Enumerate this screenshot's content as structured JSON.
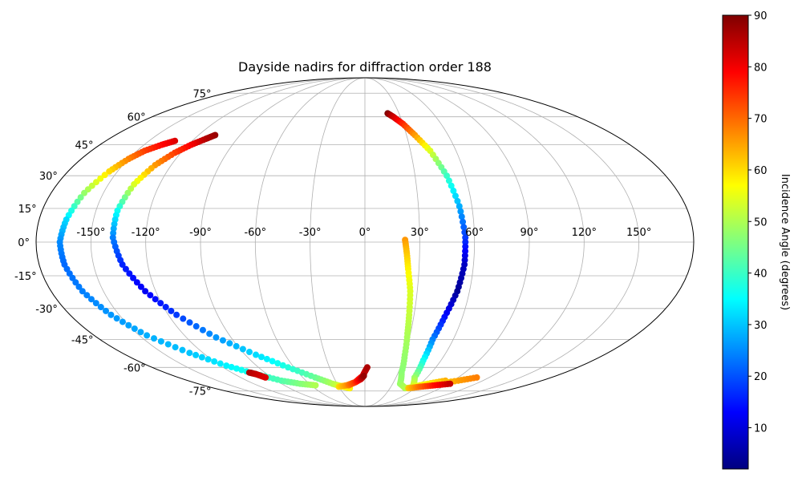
{
  "chart_data": {
    "type": "scatter",
    "projection": "mollweide",
    "title": "Dayside nadirs for diffraction order 188",
    "grid": true,
    "xticks": [
      -150,
      -120,
      -90,
      -60,
      -30,
      0,
      30,
      60,
      90,
      120,
      150
    ],
    "xtick_labels": [
      "-150°",
      "-120°",
      "-90°",
      "-60°",
      "-30°",
      "0°",
      "30°",
      "60°",
      "90°",
      "120°",
      "150°"
    ],
    "yticks": [
      -75,
      -60,
      -45,
      -30,
      -15,
      0,
      15,
      30,
      45,
      60,
      75
    ],
    "ytick_labels": [
      "-75°",
      "-60°",
      "-45°",
      "-30°",
      "-15°",
      "0°",
      "15°",
      "30°",
      "45°",
      "60°",
      "75°"
    ],
    "colorbar": {
      "label": "Incidence Angle (degrees)",
      "colormap": "jet",
      "range": [
        2,
        90
      ],
      "ticks": [
        10,
        20,
        30,
        40,
        50,
        60,
        70,
        80,
        90
      ]
    },
    "series": [
      {
        "longitude": [
          -132,
          -138,
          -145,
          -150,
          -155,
          -161,
          -165,
          -167,
          -166,
          -162,
          -155,
          -145,
          -130,
          -115,
          -100,
          -85,
          -70,
          -55
        ],
        "latitude": [
          47,
          45,
          42,
          38,
          32,
          22,
          10,
          0,
          -10,
          -22,
          -33,
          -43,
          -52,
          -59,
          -64,
          -68,
          -70,
          -71
        ],
        "incidence": [
          82,
          79,
          74,
          68,
          60,
          48,
          32,
          25,
          22,
          24,
          26,
          28,
          30,
          34,
          38,
          42,
          46,
          50
        ]
      },
      {
        "longitude": [
          -108,
          -112,
          -118,
          -124,
          -130,
          -135,
          -138,
          -138,
          -134,
          -126,
          -115,
          -100,
          -82,
          -65,
          -48,
          -35,
          -25,
          -18
        ],
        "latitude": [
          50,
          48,
          45,
          41,
          35,
          26,
          14,
          2,
          -10,
          -22,
          -33,
          -44,
          -53,
          -60,
          -66,
          -70,
          -72,
          -73
        ],
        "incidence": [
          88,
          86,
          80,
          74,
          66,
          54,
          36,
          24,
          16,
          12,
          18,
          26,
          32,
          38,
          44,
          50,
          55,
          58
        ]
      },
      {
        "longitude": [
          -30,
          -20,
          -10,
          -2,
          2
        ],
        "latitude": [
          -72,
          -71,
          -69,
          -65,
          -60
        ],
        "incidence": [
          60,
          66,
          74,
          82,
          86
        ]
      },
      {
        "longitude": [
          -18,
          -10,
          -4,
          -1
        ],
        "latitude": [
          -71,
          -69,
          -67,
          -65
        ],
        "incidence": [
          68,
          74,
          82,
          88
        ]
      },
      {
        "longitude": [
          -104,
          -100,
          -96
        ],
        "latitude": [
          -63,
          -64,
          -66
        ],
        "incidence": [
          86,
          84,
          82
        ]
      },
      {
        "longitude": [
          20,
          24,
          30,
          36,
          43,
          49,
          53,
          55,
          55,
          53,
          49,
          46,
          46,
          48,
          55,
          68,
          82
        ],
        "latitude": [
          62,
          60,
          56,
          50,
          42,
          30,
          16,
          2,
          -10,
          -22,
          -34,
          -45,
          -56,
          -66,
          -72,
          -70,
          -68
        ],
        "incidence": [
          90,
          84,
          76,
          66,
          54,
          40,
          28,
          18,
          8,
          4,
          14,
          24,
          36,
          48,
          54,
          58,
          64
        ]
      },
      {
        "longitude": [
          22,
          23,
          24,
          26,
          27,
          28,
          30,
          33,
          38,
          48,
          62,
          78,
          95,
          108
        ],
        "latitude": [
          1,
          -5,
          -12,
          -22,
          -33,
          -42,
          -53,
          -63,
          -70,
          -73,
          -72,
          -70,
          -68,
          -66
        ],
        "incidence": [
          66,
          62,
          58,
          54,
          52,
          50,
          48,
          47,
          48,
          50,
          55,
          60,
          65,
          68
        ]
      },
      {
        "longitude": [
          52,
          64,
          78,
          92
        ],
        "latitude": [
          -73,
          -72,
          -71,
          -70
        ],
        "incidence": [
          62,
          70,
          78,
          84
        ]
      }
    ]
  }
}
